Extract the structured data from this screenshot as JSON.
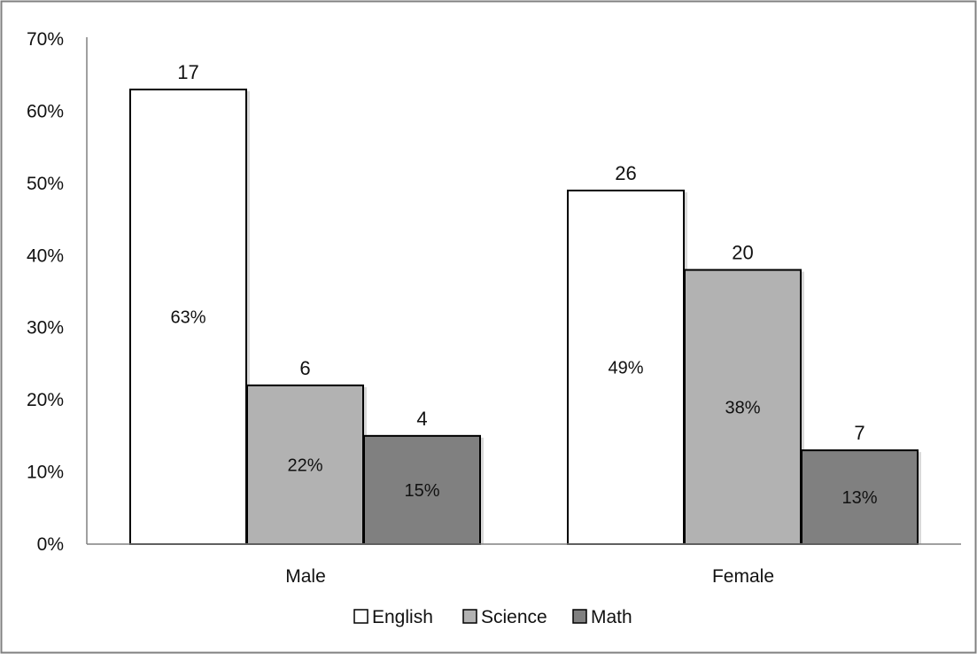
{
  "chart_data": {
    "type": "bar",
    "title": "",
    "xlabel": "",
    "ylabel": "",
    "categories": [
      "Male",
      "Female"
    ],
    "ylim": [
      0,
      70
    ],
    "ytick_labels": [
      "0%",
      "10%",
      "20%",
      "30%",
      "40%",
      "50%",
      "60%",
      "70%"
    ],
    "grid": false,
    "legend_position": "bottom",
    "series": [
      {
        "name": "English",
        "color": "#ffffff",
        "values": [
          63,
          49
        ],
        "pct_labels": [
          "63%",
          "49%"
        ],
        "count_labels": [
          "17",
          "26"
        ]
      },
      {
        "name": "Science",
        "color": "#b2b2b2",
        "values": [
          22,
          38
        ],
        "pct_labels": [
          "22%",
          "38%"
        ],
        "count_labels": [
          "6",
          "20"
        ]
      },
      {
        "name": "Math",
        "color": "#808080",
        "values": [
          15,
          13
        ],
        "pct_labels": [
          "15%",
          "13%"
        ],
        "count_labels": [
          "4",
          "7"
        ]
      }
    ]
  }
}
